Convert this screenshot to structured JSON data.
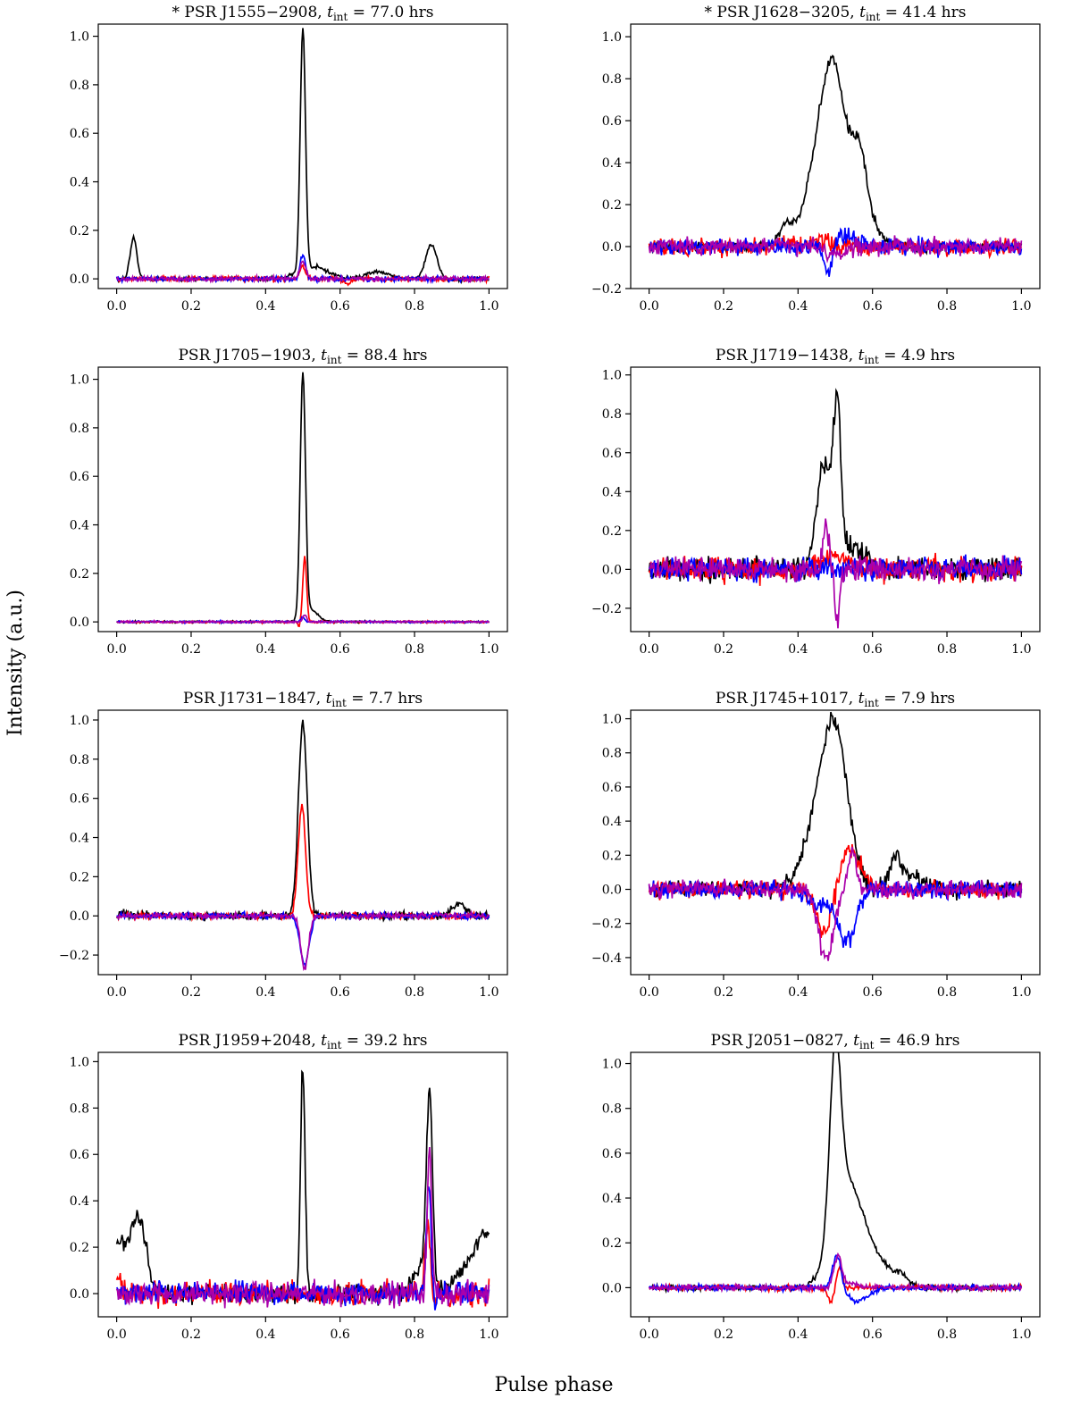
{
  "figure": {
    "ylabel": "Intensity (a.u.)",
    "xlabel": "Pulse phase"
  },
  "colors": {
    "total": "#000000",
    "linear": "#ff0000",
    "circular": "#0000ff",
    "pa": "#aa00aa"
  },
  "chart_data": [
    {
      "type": "line",
      "title": "* PSR J1555−2908, t_int = 77.0 hrs",
      "title_prefix": "* PSR J1555−2908, ",
      "title_value": " = 77.0 hrs",
      "xlim": [
        0,
        1
      ],
      "ylim": [
        -0.04,
        1.05
      ],
      "xticks": [
        "0.0",
        "0.2",
        "0.4",
        "0.6",
        "0.8",
        "1.0"
      ],
      "yticks": [
        "0.0",
        "0.2",
        "0.4",
        "0.6",
        "0.8",
        "1.0"
      ],
      "components": [
        [
          0.045,
          0.17,
          0.009
        ],
        [
          0.5,
          1.0,
          0.007
        ],
        [
          0.53,
          0.05,
          0.04
        ],
        [
          0.7,
          0.03,
          0.03
        ],
        [
          0.845,
          0.14,
          0.015
        ]
      ],
      "series": [
        {
          "name": "total",
          "color": "#000000",
          "noise": 0.004,
          "seed": 11,
          "components": [
            [
              0.045,
              0.17,
              0.009
            ],
            [
              0.5,
              1.0,
              0.007
            ],
            [
              0.53,
              0.05,
              0.04
            ],
            [
              0.7,
              0.03,
              0.03
            ],
            [
              0.845,
              0.14,
              0.015
            ]
          ]
        },
        {
          "name": "linear",
          "color": "#ff0000",
          "noise": 0.005,
          "seed": 12,
          "components": [
            [
              0.5,
              0.05,
              0.008
            ],
            [
              0.62,
              -0.02,
              0.01
            ]
          ]
        },
        {
          "name": "circular",
          "color": "#0000ff",
          "noise": 0.005,
          "seed": 13,
          "components": [
            [
              0.5,
              0.1,
              0.007
            ]
          ]
        },
        {
          "name": "pa",
          "color": "#aa00aa",
          "noise": 0.005,
          "seed": 14,
          "components": [
            [
              0.5,
              0.07,
              0.008
            ]
          ]
        }
      ]
    },
    {
      "type": "line",
      "title": "* PSR J1628−3205, t_int = 41.4 hrs",
      "title_prefix": "* PSR J1628−3205, ",
      "title_value": " = 41.4 hrs",
      "xlim": [
        0,
        1
      ],
      "ylim": [
        -0.2,
        1.06
      ],
      "xticks": [
        "0.0",
        "0.2",
        "0.4",
        "0.6",
        "0.8",
        "1.0"
      ],
      "yticks": [
        "−0.2",
        "0.0",
        "0.2",
        "0.4",
        "0.6",
        "0.8",
        "1.0"
      ],
      "series": [
        {
          "name": "total",
          "color": "#000000",
          "noise": 0.012,
          "seed": 21,
          "components": [
            [
              0.37,
              0.1,
              0.02
            ],
            [
              0.44,
              0.2,
              0.03
            ],
            [
              0.495,
              0.85,
              0.035
            ],
            [
              0.565,
              0.35,
              0.02
            ],
            [
              0.6,
              0.08,
              0.03
            ]
          ]
        },
        {
          "name": "linear",
          "color": "#ff0000",
          "noise": 0.02,
          "seed": 22,
          "components": [
            [
              0.45,
              0.03,
              0.03
            ]
          ]
        },
        {
          "name": "circular",
          "color": "#0000ff",
          "noise": 0.02,
          "seed": 23,
          "components": [
            [
              0.48,
              -0.13,
              0.01
            ],
            [
              0.53,
              0.05,
              0.03
            ]
          ]
        },
        {
          "name": "pa",
          "color": "#aa00aa",
          "noise": 0.02,
          "seed": 24,
          "components": [
            [
              0.5,
              -0.05,
              0.02
            ]
          ]
        }
      ]
    },
    {
      "type": "line",
      "title": "PSR J1705−1903, t_int = 88.4 hrs",
      "title_prefix": "PSR J1705−1903, ",
      "title_value": " = 88.4 hrs",
      "xlim": [
        0,
        1
      ],
      "ylim": [
        -0.04,
        1.05
      ],
      "xticks": [
        "0.0",
        "0.2",
        "0.4",
        "0.6",
        "0.8",
        "1.0"
      ],
      "yticks": [
        "0.0",
        "0.2",
        "0.4",
        "0.6",
        "0.8",
        "1.0"
      ],
      "series": [
        {
          "name": "total",
          "color": "#000000",
          "noise": 0.002,
          "seed": 31,
          "components": [
            [
              0.5,
              1.0,
              0.007
            ],
            [
              0.52,
              0.05,
              0.02
            ]
          ]
        },
        {
          "name": "linear",
          "color": "#ff0000",
          "noise": 0.002,
          "seed": 32,
          "components": [
            [
              0.505,
              0.27,
              0.005
            ],
            [
              0.49,
              -0.02,
              0.003
            ]
          ]
        },
        {
          "name": "circular",
          "color": "#0000ff",
          "noise": 0.002,
          "seed": 33,
          "components": [
            [
              0.5,
              0.02,
              0.005
            ]
          ]
        },
        {
          "name": "pa",
          "color": "#aa00aa",
          "noise": 0.002,
          "seed": 34,
          "components": [
            [
              0.505,
              0.03,
              0.005
            ]
          ]
        }
      ]
    },
    {
      "type": "line",
      "title": "PSR J1719−1438, t_int = 4.9 hrs",
      "title_prefix": "PSR J1719−1438, ",
      "title_value": " = 4.9 hrs",
      "xlim": [
        0,
        1
      ],
      "ylim": [
        -0.32,
        1.04
      ],
      "xticks": [
        "0.0",
        "0.2",
        "0.4",
        "0.6",
        "0.8",
        "1.0"
      ],
      "yticks": [
        "−0.2",
        "0.0",
        "0.2",
        "0.4",
        "0.6",
        "0.8",
        "1.0"
      ],
      "series": [
        {
          "name": "total",
          "color": "#000000",
          "noise": 0.03,
          "seed": 41,
          "components": [
            [
              0.47,
              0.55,
              0.02
            ],
            [
              0.505,
              0.75,
              0.01
            ],
            [
              0.55,
              0.12,
              0.03
            ]
          ]
        },
        {
          "name": "linear",
          "color": "#ff0000",
          "noise": 0.03,
          "seed": 42,
          "components": [
            [
              0.5,
              0.08,
              0.03
            ]
          ]
        },
        {
          "name": "circular",
          "color": "#0000ff",
          "noise": 0.03,
          "seed": 43,
          "components": []
        },
        {
          "name": "pa",
          "color": "#aa00aa",
          "noise": 0.03,
          "seed": 44,
          "components": [
            [
              0.475,
              0.22,
              0.008
            ],
            [
              0.505,
              -0.3,
              0.006
            ]
          ]
        }
      ]
    },
    {
      "type": "line",
      "title": "PSR J1731−1847, t_int = 7.7 hrs",
      "title_prefix": "PSR J1731−1847, ",
      "title_value": " = 7.7 hrs",
      "xlim": [
        0,
        1
      ],
      "ylim": [
        -0.3,
        1.05
      ],
      "xticks": [
        "0.0",
        "0.2",
        "0.4",
        "0.6",
        "0.8",
        "1.0"
      ],
      "yticks": [
        "−0.2",
        "0.0",
        "0.2",
        "0.4",
        "0.6",
        "0.8",
        "1.0"
      ],
      "series": [
        {
          "name": "total",
          "color": "#000000",
          "noise": 0.01,
          "seed": 51,
          "components": [
            [
              0.5,
              0.98,
              0.012
            ],
            [
              0.92,
              0.06,
              0.02
            ],
            [
              0.02,
              0.015,
              0.01
            ]
          ]
        },
        {
          "name": "linear",
          "color": "#ff0000",
          "noise": 0.008,
          "seed": 52,
          "components": [
            [
              0.497,
              0.58,
              0.01
            ],
            [
              0.49,
              -0.03,
              0.005
            ]
          ]
        },
        {
          "name": "circular",
          "color": "#0000ff",
          "noise": 0.008,
          "seed": 53,
          "components": [
            [
              0.505,
              -0.25,
              0.012
            ]
          ]
        },
        {
          "name": "pa",
          "color": "#aa00aa",
          "noise": 0.008,
          "seed": 54,
          "components": [
            [
              0.505,
              -0.27,
              0.01
            ]
          ]
        }
      ]
    },
    {
      "type": "line",
      "title": "PSR J1745+1017, t_int = 7.9 hrs",
      "title_prefix": "PSR J1745+1017, ",
      "title_value": " = 7.9 hrs",
      "xlim": [
        0,
        1
      ],
      "ylim": [
        -0.5,
        1.05
      ],
      "xticks": [
        "0.0",
        "0.2",
        "0.4",
        "0.6",
        "0.8",
        "1.0"
      ],
      "yticks": [
        "−0.4",
        "−0.2",
        "0.0",
        "0.2",
        "0.4",
        "0.6",
        "0.8",
        "1.0"
      ],
      "series": [
        {
          "name": "total",
          "color": "#000000",
          "noise": 0.025,
          "seed": 61,
          "components": [
            [
              0.45,
              0.3,
              0.04
            ],
            [
              0.5,
              0.85,
              0.035
            ],
            [
              0.66,
              0.17,
              0.015
            ],
            [
              0.7,
              0.08,
              0.03
            ]
          ]
        },
        {
          "name": "linear",
          "color": "#ff0000",
          "noise": 0.025,
          "seed": 62,
          "components": [
            [
              0.47,
              -0.25,
              0.02
            ],
            [
              0.535,
              0.24,
              0.02
            ],
            [
              0.57,
              0.08,
              0.02
            ]
          ]
        },
        {
          "name": "circular",
          "color": "#0000ff",
          "noise": 0.025,
          "seed": 63,
          "components": [
            [
              0.45,
              -0.08,
              0.03
            ],
            [
              0.53,
              -0.3,
              0.025
            ]
          ]
        },
        {
          "name": "pa",
          "color": "#aa00aa",
          "noise": 0.025,
          "seed": 64,
          "components": [
            [
              0.475,
              -0.42,
              0.02
            ],
            [
              0.545,
              0.2,
              0.012
            ]
          ]
        }
      ]
    },
    {
      "type": "line",
      "title": "PSR J1959+2048, t_int = 39.2 hrs",
      "title_prefix": "PSR J1959+2048, ",
      "title_value": " = 39.2 hrs",
      "xlim": [
        0,
        1
      ],
      "ylim": [
        -0.1,
        1.04
      ],
      "xticks": [
        "0.0",
        "0.2",
        "0.4",
        "0.6",
        "0.8",
        "1.0"
      ],
      "yticks": [
        "0.0",
        "0.2",
        "0.4",
        "0.6",
        "0.8",
        "1.0"
      ],
      "series": [
        {
          "name": "total",
          "color": "#000000",
          "noise": 0.02,
          "seed": 71,
          "components": [
            [
              0.0,
              0.22,
              0.03
            ],
            [
              0.06,
              0.3,
              0.02
            ],
            [
              0.5,
              0.98,
              0.006
            ],
            [
              0.84,
              0.8,
              0.008
            ],
            [
              0.82,
              0.12,
              0.02
            ],
            [
              1.0,
              0.22,
              0.03
            ],
            [
              0.95,
              0.1,
              0.04
            ]
          ]
        },
        {
          "name": "linear",
          "color": "#ff0000",
          "noise": 0.025,
          "seed": 72,
          "components": [
            [
              0.0,
              0.06,
              0.01
            ],
            [
              0.835,
              0.3,
              0.008
            ],
            [
              0.855,
              -0.08,
              0.005
            ]
          ]
        },
        {
          "name": "circular",
          "color": "#0000ff",
          "noise": 0.025,
          "seed": 73,
          "components": [
            [
              0.838,
              0.48,
              0.006
            ],
            [
              0.855,
              -0.05,
              0.004
            ]
          ]
        },
        {
          "name": "pa",
          "color": "#aa00aa",
          "noise": 0.025,
          "seed": 74,
          "components": [
            [
              0.84,
              0.6,
              0.006
            ]
          ]
        }
      ]
    },
    {
      "type": "line",
      "title": "PSR J2051−0827, t_int = 46.9 hrs",
      "title_prefix": "PSR J2051−0827, ",
      "title_value": " = 46.9 hrs",
      "xlim": [
        0,
        1
      ],
      "ylim": [
        -0.13,
        1.05
      ],
      "xticks": [
        "0.0",
        "0.2",
        "0.4",
        "0.6",
        "0.8",
        "1.0"
      ],
      "yticks": [
        "0.0",
        "0.2",
        "0.4",
        "0.6",
        "0.8",
        "1.0"
      ],
      "series": [
        {
          "name": "total",
          "color": "#000000",
          "noise": 0.006,
          "seed": 81,
          "components": [
            [
              0.5,
              0.78,
              0.015
            ],
            [
              0.53,
              0.42,
              0.04
            ],
            [
              0.6,
              0.12,
              0.05
            ],
            [
              0.68,
              0.03,
              0.015
            ]
          ]
        },
        {
          "name": "linear",
          "color": "#ff0000",
          "noise": 0.006,
          "seed": 82,
          "components": [
            [
              0.49,
              -0.06,
              0.01
            ],
            [
              0.51,
              0.1,
              0.008
            ]
          ]
        },
        {
          "name": "circular",
          "color": "#0000ff",
          "noise": 0.006,
          "seed": 83,
          "components": [
            [
              0.505,
              0.15,
              0.012
            ],
            [
              0.56,
              -0.06,
              0.03
            ]
          ]
        },
        {
          "name": "pa",
          "color": "#aa00aa",
          "noise": 0.006,
          "seed": 84,
          "components": [
            [
              0.507,
              0.14,
              0.01
            ],
            [
              0.54,
              0.02,
              0.02
            ]
          ]
        }
      ]
    }
  ]
}
